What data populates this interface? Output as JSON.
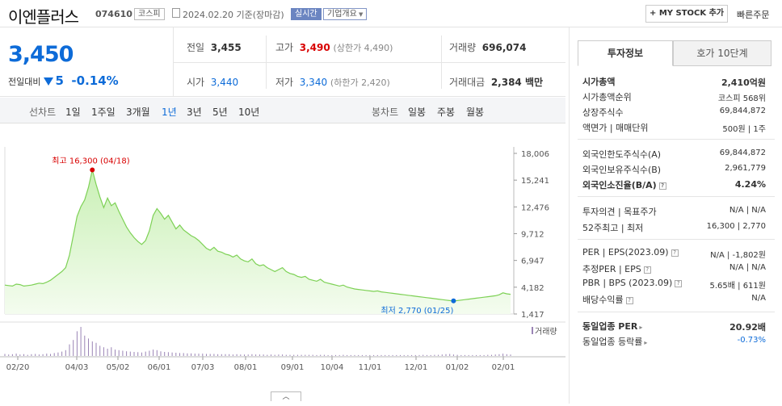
{
  "header": {
    "stock_name": "이엔플러스",
    "stock_code": "074610",
    "market": "코스피",
    "date": "2024.02.20 기준(장마감)",
    "realtime_tag": "실시간",
    "company_info": "기업개요",
    "mystock_label": "+ MY STOCK 추가",
    "quick_order": "빠른주문"
  },
  "price": {
    "current": "3,450",
    "change_label": "전일대비",
    "change_value": "5",
    "change_pct": "-0.14%"
  },
  "stats": {
    "prev_close_label": "전일",
    "prev_close": "3,455",
    "high_label": "고가",
    "high": "3,490",
    "upper_limit": "(상한가 4,490)",
    "volume_label": "거래량",
    "volume": "696,074",
    "open_label": "시가",
    "open": "3,440",
    "low_label": "저가",
    "low": "3,340",
    "lower_limit": "(하한가 2,420)",
    "amount_label": "거래대금",
    "amount": "2,384 백만"
  },
  "tabs": {
    "line_label": "선차트",
    "line_periods": [
      "1일",
      "1주일",
      "3개월",
      "1년",
      "3년",
      "5년",
      "10년"
    ],
    "active": "1년",
    "candle_label": "봉차트",
    "candle_periods": [
      "일봉",
      "주봉",
      "월봉"
    ]
  },
  "chart_data": {
    "type": "area",
    "yticks": [
      "18,006",
      "15,241",
      "12,476",
      "9,712",
      "6,947",
      "4,182",
      "1,417"
    ],
    "ylim": [
      1417,
      18006
    ],
    "xticks": [
      "02/20",
      "04/03",
      "05/02",
      "06/01",
      "07/03",
      "08/01",
      "09/01",
      "10/04",
      "11/01",
      "12/01",
      "01/02",
      "02/01"
    ],
    "high_annotation": "최고 16,300 (04/18)",
    "low_annotation": "최저 2,770 (01/25)",
    "volume_label": "거래량",
    "series": [
      {
        "values": [
          4400,
          4350,
          4300,
          4500,
          4450,
          4300,
          4350,
          4400,
          4500,
          4600,
          4550,
          4700,
          4900,
          5200,
          5500,
          5800,
          6200,
          7500,
          9500,
          11500,
          12500,
          13200,
          14500,
          16300,
          14800,
          13500,
          12400,
          13400,
          12600,
          12900,
          12000,
          11200,
          10400,
          9800,
          9300,
          8900,
          8600,
          9000,
          10000,
          11600,
          12300,
          11800,
          11200,
          11600,
          10900,
          10200,
          10600,
          10100,
          9800,
          9500,
          9300,
          9000,
          8600,
          8200,
          8000,
          8300,
          7900,
          7800,
          7600,
          7500,
          7300,
          7500,
          7100,
          6900,
          6800,
          7100,
          6600,
          6400,
          6500,
          6200,
          6000,
          5800,
          6000,
          6200,
          5800,
          5600,
          5500,
          5300,
          5200,
          5300,
          5000,
          4900,
          4800,
          5000,
          4700,
          4600,
          4500,
          4400,
          4300,
          4400,
          4200,
          4100,
          4000,
          3950,
          3900,
          3850,
          3800,
          3750,
          3800,
          3700,
          3650,
          3600,
          3550,
          3500,
          3450,
          3400,
          3350,
          3300,
          3250,
          3200,
          3150,
          3100,
          3050,
          3000,
          2950,
          2900,
          2850,
          2800,
          2770,
          2800,
          2850,
          2900,
          2950,
          3000,
          3050,
          3100,
          3150,
          3200,
          3250,
          3300,
          3400,
          3600,
          3500,
          3450
        ]
      }
    ],
    "volume": [
      0.07,
      0.05,
      0.06,
      0.08,
      0.05,
      0.06,
      0.04,
      0.06,
      0.07,
      0.05,
      0.06,
      0.08,
      0.07,
      0.1,
      0.12,
      0.15,
      0.2,
      0.4,
      0.55,
      0.85,
      1.0,
      0.7,
      0.6,
      0.5,
      0.45,
      0.35,
      0.3,
      0.25,
      0.3,
      0.22,
      0.2,
      0.18,
      0.16,
      0.15,
      0.14,
      0.13,
      0.12,
      0.15,
      0.18,
      0.22,
      0.2,
      0.16,
      0.14,
      0.13,
      0.12,
      0.11,
      0.1,
      0.1,
      0.09,
      0.09,
      0.08,
      0.08,
      0.08,
      0.07,
      0.07,
      0.07,
      0.06,
      0.06,
      0.06,
      0.06,
      0.05,
      0.06,
      0.05,
      0.05,
      0.05,
      0.06,
      0.05,
      0.05,
      0.05,
      0.04,
      0.05,
      0.04,
      0.05,
      0.05,
      0.04,
      0.04,
      0.04,
      0.04,
      0.04,
      0.04,
      0.04,
      0.04,
      0.03,
      0.04,
      0.04,
      0.03,
      0.03,
      0.03,
      0.03,
      0.04,
      0.03,
      0.03,
      0.03,
      0.03,
      0.03,
      0.03,
      0.03,
      0.03,
      0.03,
      0.03,
      0.03,
      0.03,
      0.03,
      0.03,
      0.03,
      0.03,
      0.03,
      0.03,
      0.03,
      0.03,
      0.04,
      0.03,
      0.03,
      0.04,
      0.04,
      0.05,
      0.06,
      0.07,
      0.05,
      0.04,
      0.03,
      0.03,
      0.03,
      0.03,
      0.03,
      0.03,
      0.03,
      0.04,
      0.04,
      0.05,
      0.06,
      0.08,
      0.06,
      0.05
    ]
  },
  "right": {
    "tab_invest": "투자정보",
    "tab_hoga": "호가 10단계",
    "market_cap_label": "시가총액",
    "market_cap": "2,410억원",
    "rank_label": "시가총액순위",
    "rank": "코스피 568위",
    "shares_label": "상장주식수",
    "shares": "69,844,872",
    "par_label": "액면가 | 매매단위",
    "par": "500원 | 1주",
    "foreign_limit_label": "외국인한도주식수(A)",
    "foreign_limit": "69,844,872",
    "foreign_hold_label": "외국인보유주식수(B)",
    "foreign_hold": "2,961,779",
    "foreign_ratio_label": "외국인소진율(B/A)",
    "foreign_ratio": "4.24%",
    "opinion_label": "투자의견 | 목표주가",
    "opinion": "N/A | N/A",
    "w52_label": "52주최고 | 최저",
    "w52": "16,300 | 2,770",
    "per_label": "PER | EPS(2023.09)",
    "per": "N/A | -1,802원",
    "est_per_label": "추정PER | EPS",
    "est_per": "N/A | N/A",
    "pbr_label": "PBR | BPS (2023.09)",
    "pbr": "5.65배 | 611원",
    "dividend_label": "배당수익률",
    "dividend": "N/A",
    "sector_per_label": "동일업종 PER",
    "sector_per": "20.92배",
    "sector_rate_label": "동일업종 등락률",
    "sector_rate": "-0.73%"
  }
}
